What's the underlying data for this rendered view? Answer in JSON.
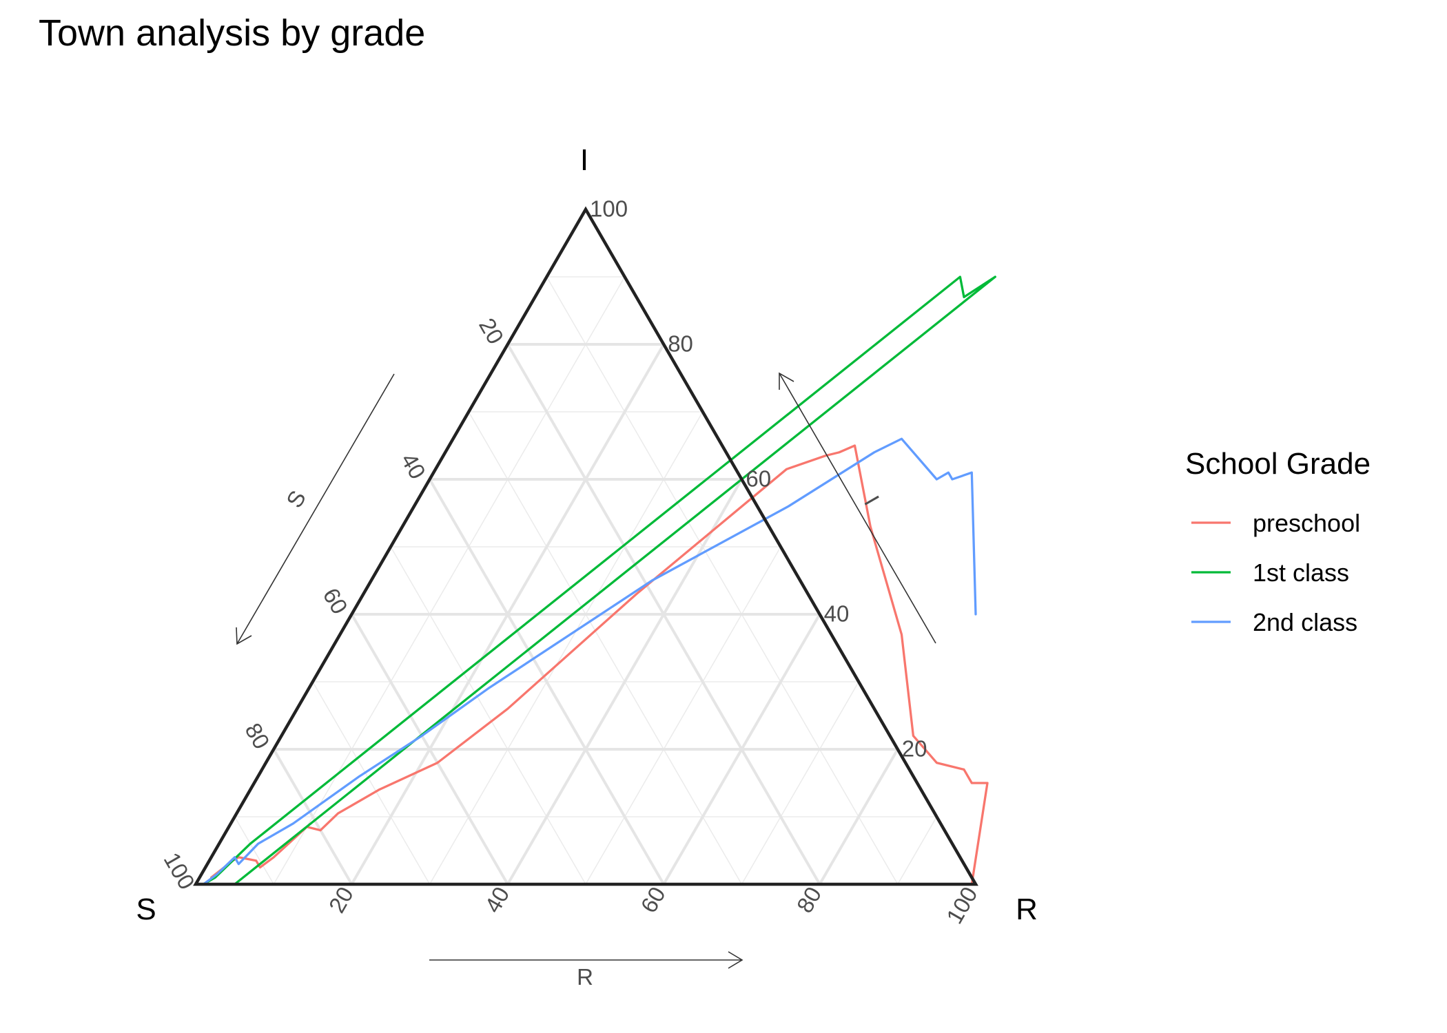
{
  "title": "Town analysis by grade",
  "chart_data": {
    "type": "ternary-line",
    "title": "Town analysis by grade",
    "axes": {
      "S": {
        "label": "S",
        "arrow_label": "S",
        "range": [
          0,
          100
        ]
      },
      "R": {
        "label": "R",
        "arrow_label": "R",
        "range": [
          0,
          100
        ]
      },
      "I": {
        "label": "I",
        "arrow_label": "I",
        "range": [
          0,
          100
        ]
      }
    },
    "ticks": [
      "20",
      "40",
      "60",
      "80",
      "100"
    ],
    "grid": true,
    "legend": {
      "title": "School Grade",
      "position": "right"
    },
    "series": [
      {
        "name": "preschool",
        "color": "#F8766D",
        "points": [
          {
            "R": 99.5,
            "I": 0
          },
          {
            "R": 94,
            "I": 15
          },
          {
            "R": 92,
            "I": 15
          },
          {
            "R": 90,
            "I": 17
          },
          {
            "R": 86,
            "I": 18
          },
          {
            "R": 81,
            "I": 22
          },
          {
            "R": 72,
            "I": 37
          },
          {
            "R": 60,
            "I": 53
          },
          {
            "R": 52,
            "I": 65
          },
          {
            "R": 50.5,
            "I": 64
          },
          {
            "R": 49,
            "I": 63.5
          },
          {
            "R": 45,
            "I": 61.5
          },
          {
            "R": 35,
            "I": 43
          },
          {
            "R": 27,
            "I": 26
          },
          {
            "R": 22,
            "I": 18
          },
          {
            "R": 16.5,
            "I": 14
          },
          {
            "R": 13,
            "I": 10.5
          },
          {
            "R": 12,
            "I": 8
          },
          {
            "R": 10,
            "I": 8.5
          },
          {
            "R": 8,
            "I": 4
          },
          {
            "R": 7,
            "I": 2.5
          },
          {
            "R": 6,
            "I": 3.5
          },
          {
            "R": 3.5,
            "I": 4
          },
          {
            "R": 3,
            "I": 3.5
          },
          {
            "R": 1.5,
            "I": 1
          }
        ]
      },
      {
        "name": "1st class",
        "color": "#00BA38",
        "points": [
          {
            "R": 5,
            "I": 0
          },
          {
            "R": 57.5,
            "I": 90
          },
          {
            "R": 55,
            "I": 87
          },
          {
            "R": 53,
            "I": 90
          },
          {
            "R": 4,
            "I": 6
          },
          {
            "R": 2,
            "I": 1
          },
          {
            "R": 1,
            "I": 0
          }
        ]
      },
      {
        "name": "2nd class",
        "color": "#619CFF",
        "points": [
          {
            "R": 1,
            "I": 0
          },
          {
            "R": 2,
            "I": 1.5
          },
          {
            "R": 3,
            "I": 4
          },
          {
            "R": 4,
            "I": 3
          },
          {
            "R": 5,
            "I": 6
          },
          {
            "R": 8,
            "I": 9
          },
          {
            "R": 13,
            "I": 16
          },
          {
            "R": 18,
            "I": 22
          },
          {
            "R": 23,
            "I": 29
          },
          {
            "R": 36,
            "I": 45
          },
          {
            "R": 48,
            "I": 56
          },
          {
            "R": 55,
            "I": 64
          },
          {
            "R": 57.5,
            "I": 66
          },
          {
            "R": 65,
            "I": 60
          },
          {
            "R": 66,
            "I": 61
          },
          {
            "R": 67,
            "I": 60
          },
          {
            "R": 69,
            "I": 61
          },
          {
            "R": 80,
            "I": 40
          }
        ]
      }
    ]
  }
}
